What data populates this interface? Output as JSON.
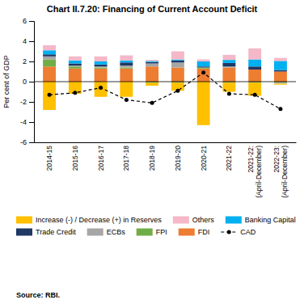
{
  "chart_data": {
    "type": "bar",
    "stacked": true,
    "title": "Chart II.7.20: Financing of Current Account Deficit",
    "ylabel": "Per cent of GDP",
    "annotations": [
      "Source: RBI."
    ],
    "categories": [
      "2014-15",
      "2015-16",
      "2016-17",
      "2017-18",
      "2018-19",
      "2019-20",
      "2020-21",
      "2021-22",
      "2021-22:\n(April-December)",
      "2022-23:\n(April-December)"
    ],
    "ylim": [
      -6,
      6
    ],
    "yticks": [
      -6,
      -4,
      -2,
      0,
      2,
      4,
      6
    ],
    "legend": "bottom",
    "series": [
      {
        "name": "FDI",
        "type": "bar",
        "color": "#ED7D31",
        "values": [
          1.5,
          1.3,
          1.3,
          1.3,
          1.5,
          1.4,
          1.3,
          1.4,
          1.2,
          1.0
        ]
      },
      {
        "name": "FPI",
        "type": "bar",
        "color": "#70AD47",
        "values": [
          0.7,
          0.2,
          0.1,
          0.1,
          -0.1,
          -0.1,
          0.1,
          -0.1,
          -0.1,
          -0.1
        ]
      },
      {
        "name": "ECBs",
        "type": "bar",
        "color": "#A6A6A6",
        "values": [
          0.3,
          0.1,
          0.1,
          0.2,
          0.3,
          0.5,
          0.0,
          0.1,
          0.0,
          -0.1
        ]
      },
      {
        "name": "Trade Credit",
        "type": "bar",
        "color": "#1F3864",
        "values": [
          0.2,
          0.2,
          0.2,
          0.3,
          0.15,
          0.2,
          0.1,
          0.35,
          0.3,
          0.15
        ]
      },
      {
        "name": "Banking Capital",
        "type": "bar",
        "color": "#00B0F0",
        "values": [
          0.4,
          0.3,
          0.3,
          0.2,
          0.1,
          0.1,
          0.5,
          0.3,
          0.7,
          0.9
        ]
      },
      {
        "name": "Others",
        "type": "bar",
        "color": "#F4B8C8",
        "values": [
          0.5,
          0.4,
          0.5,
          0.5,
          0.1,
          0.8,
          0.2,
          0.5,
          1.1,
          0.3
        ]
      },
      {
        "name": "Increase (-) / Decrease (+) in Reserves",
        "type": "bar",
        "color": "#FFC000",
        "values": [
          -2.8,
          -1.2,
          -1.5,
          -1.5,
          -0.3,
          -0.8,
          -4.3,
          -0.9,
          -1.3,
          -0.1
        ]
      },
      {
        "name": "CAD",
        "type": "line",
        "color": "#000000",
        "line_style": "dashed",
        "marker": "circle",
        "values": [
          -1.3,
          -1.1,
          -0.6,
          -1.8,
          -2.1,
          -0.9,
          0.9,
          -1.2,
          -1.3,
          -2.7
        ]
      }
    ]
  }
}
